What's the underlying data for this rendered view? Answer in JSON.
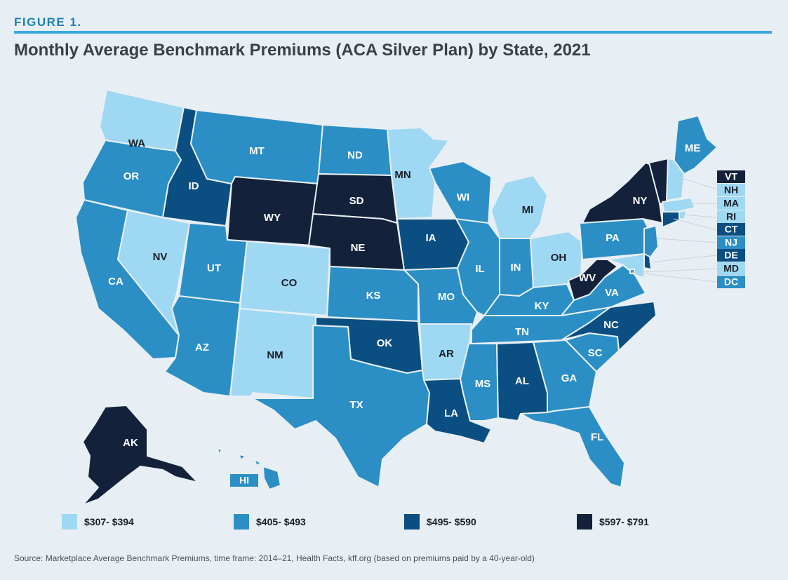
{
  "figure_label": "FIGURE 1.",
  "title": "Monthly Average Benchmark Premiums (ACA Silver Plan) by State, 2021",
  "source": "Source: Marketplace Average Benchmark Premiums, time frame: 2014–21, Health Facts, kff.org (based on premiums paid by a 40-year-old)",
  "colors": {
    "tier1": "#9fd8f2",
    "tier2": "#2b8fc6",
    "tier3": "#0b4e82",
    "tier4": "#13223a",
    "accent": "#3ba8de"
  },
  "legend": [
    {
      "label": "$307- $394",
      "tier": 1
    },
    {
      "label": "$405- $493",
      "tier": 2
    },
    {
      "label": "$495- $590",
      "tier": 3
    },
    {
      "label": "$597- $791",
      "tier": 4
    }
  ],
  "states": {
    "WA": 1,
    "OR": 2,
    "CA": 2,
    "NV": 1,
    "ID": 3,
    "MT": 2,
    "WY": 4,
    "UT": 2,
    "AZ": 2,
    "CO": 1,
    "NM": 1,
    "ND": 2,
    "SD": 4,
    "NE": 4,
    "KS": 2,
    "OK": 3,
    "TX": 2,
    "MN": 1,
    "IA": 3,
    "MO": 2,
    "AR": 1,
    "LA": 3,
    "WI": 2,
    "IL": 2,
    "MI": 1,
    "IN": 2,
    "OH": 1,
    "KY": 2,
    "TN": 2,
    "MS": 2,
    "AL": 3,
    "GA": 2,
    "FL": 2,
    "SC": 2,
    "NC": 3,
    "VA": 2,
    "WV": 4,
    "PA": 2,
    "NY": 4,
    "ME": 2,
    "AK": 4,
    "HI": 2,
    "VT": 4,
    "NH": 1,
    "MA": 1,
    "RI": 1,
    "CT": 3,
    "NJ": 2,
    "DE": 3,
    "MD": 1,
    "DC": 2
  },
  "labels": {
    "WA": "WA",
    "OR": "OR",
    "CA": "CA",
    "NV": "NV",
    "ID": "ID",
    "MT": "MT",
    "WY": "WY",
    "UT": "UT",
    "AZ": "AZ",
    "CO": "CO",
    "NM": "NM",
    "ND": "ND",
    "SD": "SD",
    "NE": "NE",
    "KS": "KS",
    "OK": "OK",
    "TX": "TX",
    "MN": "MN",
    "IA": "IA",
    "MO": "MO",
    "AR": "AR",
    "LA": "LA",
    "WI": "WI",
    "IL": "IL",
    "MI": "MI",
    "IN": "IN",
    "OH": "OH",
    "KY": "KY",
    "TN": "TN",
    "MS": "MS",
    "AL": "AL",
    "GA": "GA",
    "FL": "FL",
    "SC": "SC",
    "NC": "NC",
    "VA": "VA",
    "WV": "WV",
    "PA": "PA",
    "NY": "NY",
    "ME": "ME",
    "AK": "AK",
    "HI": "HI",
    "VT": "VT",
    "NH": "NH",
    "MA": "MA",
    "RI": "RI",
    "CT": "CT",
    "NJ": "NJ",
    "DE": "DE",
    "MD": "MD",
    "DC": "DC"
  }
}
